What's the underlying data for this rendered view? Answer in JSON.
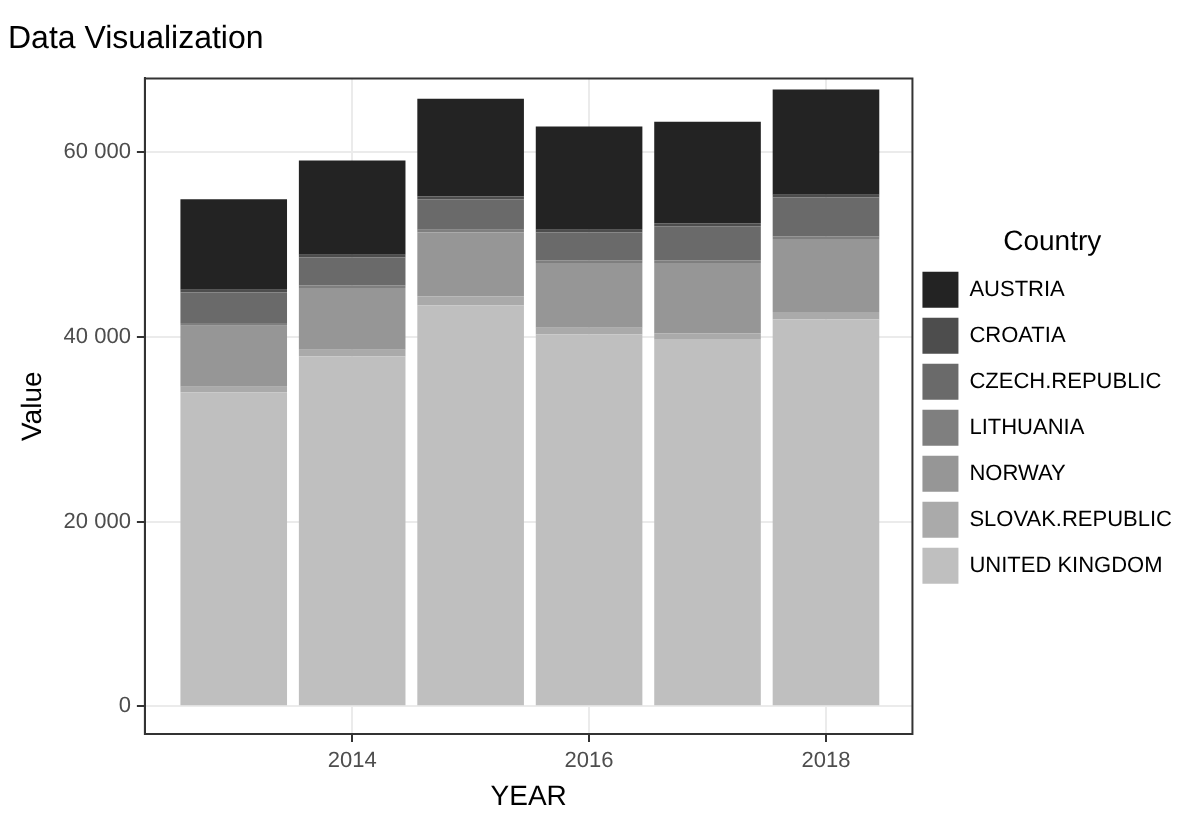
{
  "chart_data": {
    "type": "bar",
    "title": "Data Visualization",
    "xlabel": "YEAR",
    "ylabel": "Value",
    "legend_title": "Country",
    "stacked": true,
    "x": [
      2013,
      2014,
      2015,
      2016,
      2017,
      2018
    ],
    "series": [
      {
        "name": "UNITED KINGDOM",
        "color": "#bfbfbf",
        "values": [
          34000,
          37900,
          43400,
          40300,
          39700,
          41900
        ]
      },
      {
        "name": "SLOVAK.REPUBLIC",
        "color": "#aaaaaa",
        "values": [
          600,
          700,
          1000,
          700,
          700,
          800
        ]
      },
      {
        "name": "NORWAY",
        "color": "#969696",
        "values": [
          6600,
          6700,
          6900,
          7000,
          7600,
          7900
        ]
      },
      {
        "name": "LITHUANIA",
        "color": "#7f7f7f",
        "values": [
          300,
          300,
          300,
          300,
          300,
          300
        ]
      },
      {
        "name": "CZECH.REPUBLIC",
        "color": "#6a6a6a",
        "values": [
          3300,
          3000,
          3300,
          3000,
          3700,
          4200
        ]
      },
      {
        "name": "CROATIA",
        "color": "#4d4d4d",
        "values": [
          300,
          300,
          300,
          300,
          300,
          300
        ]
      },
      {
        "name": "AUSTRIA",
        "color": "#232323",
        "values": [
          9800,
          10200,
          10600,
          11200,
          11000,
          11400
        ]
      }
    ],
    "xlim": [
      2012.25,
      2018.73
    ],
    "xticks": [
      2014,
      2016,
      2018
    ],
    "ylim": [
      -3000,
      68000
    ],
    "yticks": [
      {
        "value": 0,
        "label": "0"
      },
      {
        "value": 20000,
        "label": "20 000"
      },
      {
        "value": 40000,
        "label": "40 000"
      },
      {
        "value": 60000,
        "label": "60 000"
      }
    ],
    "grid": true,
    "legend": "right"
  }
}
